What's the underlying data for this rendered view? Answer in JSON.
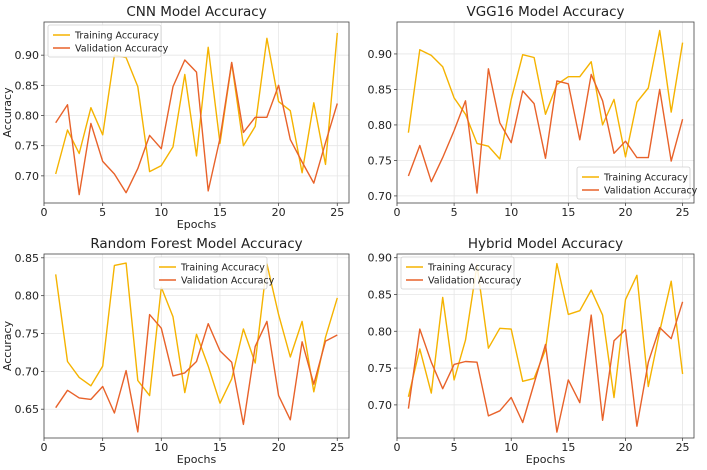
{
  "colors": {
    "training": "#f5b300",
    "validation": "#e8622a",
    "grid": "#e6e6e6",
    "axis": "#444444"
  },
  "chart_data": [
    {
      "type": "line",
      "title": "CNN Model Accuracy",
      "xlabel": "Epochs",
      "ylabel": "Accuracy",
      "xlim": [
        0,
        26
      ],
      "ylim": [
        0.655,
        0.955
      ],
      "xticks": [
        0,
        5,
        10,
        15,
        20,
        25
      ],
      "yticks": [
        0.7,
        0.75,
        0.8,
        0.85,
        0.9
      ],
      "grid": true,
      "legend": "top-left",
      "x": [
        1,
        2,
        3,
        4,
        5,
        6,
        7,
        8,
        9,
        10,
        11,
        12,
        13,
        14,
        15,
        16,
        17,
        18,
        19,
        20,
        21,
        22,
        23,
        24,
        25
      ],
      "series": [
        {
          "name": "Training Accuracy",
          "values": [
            0.703,
            0.776,
            0.737,
            0.813,
            0.768,
            0.9,
            0.896,
            0.848,
            0.707,
            0.717,
            0.748,
            0.868,
            0.733,
            0.913,
            0.754,
            0.887,
            0.75,
            0.782,
            0.928,
            0.823,
            0.808,
            0.705,
            0.821,
            0.719,
            0.937
          ]
        },
        {
          "name": "Validation Accuracy",
          "values": [
            0.788,
            0.818,
            0.669,
            0.787,
            0.724,
            0.703,
            0.672,
            0.712,
            0.767,
            0.745,
            0.848,
            0.892,
            0.872,
            0.675,
            0.762,
            0.888,
            0.772,
            0.797,
            0.797,
            0.85,
            0.76,
            0.723,
            0.688,
            0.755,
            0.82
          ]
        }
      ]
    },
    {
      "type": "line",
      "title": "VGG16 Model Accuracy",
      "xlabel": "",
      "ylabel": "",
      "xlim": [
        0,
        26
      ],
      "ylim": [
        0.69,
        0.945
      ],
      "xticks": [
        0,
        5,
        10,
        15,
        20,
        25
      ],
      "yticks": [
        0.7,
        0.75,
        0.8,
        0.85,
        0.9
      ],
      "grid": true,
      "legend": "bottom-right",
      "x": [
        1,
        2,
        3,
        4,
        5,
        6,
        7,
        8,
        9,
        10,
        11,
        12,
        13,
        14,
        15,
        16,
        17,
        18,
        19,
        20,
        21,
        22,
        23,
        24,
        25
      ],
      "series": [
        {
          "name": "Training Accuracy",
          "values": [
            0.789,
            0.906,
            0.898,
            0.882,
            0.838,
            0.815,
            0.774,
            0.77,
            0.752,
            0.836,
            0.899,
            0.895,
            0.815,
            0.857,
            0.868,
            0.868,
            0.889,
            0.8,
            0.836,
            0.755,
            0.832,
            0.852,
            0.933,
            0.818,
            0.916
          ]
        },
        {
          "name": "Validation Accuracy",
          "values": [
            0.728,
            0.771,
            0.72,
            0.754,
            0.792,
            0.834,
            0.704,
            0.879,
            0.803,
            0.775,
            0.848,
            0.83,
            0.753,
            0.862,
            0.858,
            0.779,
            0.871,
            0.834,
            0.76,
            0.777,
            0.754,
            0.754,
            0.85,
            0.749,
            0.808
          ]
        }
      ]
    },
    {
      "type": "line",
      "title": "Random Forest Model Accuracy",
      "xlabel": "Epochs",
      "ylabel": "Accuracy",
      "xlim": [
        0,
        26
      ],
      "ylim": [
        0.612,
        0.855
      ],
      "xticks": [
        0,
        5,
        10,
        15,
        20,
        25
      ],
      "yticks": [
        0.65,
        0.7,
        0.75,
        0.8,
        0.85
      ],
      "grid": true,
      "legend": "top-center",
      "x": [
        1,
        2,
        3,
        4,
        5,
        6,
        7,
        8,
        9,
        10,
        11,
        12,
        13,
        14,
        15,
        16,
        17,
        18,
        19,
        20,
        21,
        22,
        23,
        24,
        25
      ],
      "series": [
        {
          "name": "Training Accuracy",
          "values": [
            0.828,
            0.713,
            0.692,
            0.681,
            0.707,
            0.84,
            0.843,
            0.688,
            0.668,
            0.811,
            0.772,
            0.672,
            0.749,
            0.707,
            0.658,
            0.69,
            0.756,
            0.711,
            0.842,
            0.775,
            0.719,
            0.766,
            0.673,
            0.745,
            0.797
          ]
        },
        {
          "name": "Validation Accuracy",
          "values": [
            0.652,
            0.675,
            0.665,
            0.663,
            0.68,
            0.645,
            0.701,
            0.62,
            0.775,
            0.757,
            0.694,
            0.698,
            0.713,
            0.763,
            0.727,
            0.712,
            0.63,
            0.733,
            0.766,
            0.668,
            0.636,
            0.739,
            0.683,
            0.74,
            0.748
          ]
        }
      ]
    },
    {
      "type": "line",
      "title": "Hybrid Model Accuracy",
      "xlabel": "Epochs",
      "ylabel": "",
      "xlim": [
        0,
        26
      ],
      "ylim": [
        0.655,
        0.905
      ],
      "xticks": [
        0,
        5,
        10,
        15,
        20,
        25
      ],
      "yticks": [
        0.7,
        0.75,
        0.8,
        0.85,
        0.9
      ],
      "grid": true,
      "legend": "top-left",
      "x": [
        1,
        2,
        3,
        4,
        5,
        6,
        7,
        8,
        9,
        10,
        11,
        12,
        13,
        14,
        15,
        16,
        17,
        18,
        19,
        20,
        21,
        22,
        23,
        24,
        25
      ],
      "series": [
        {
          "name": "Training Accuracy",
          "values": [
            0.711,
            0.776,
            0.716,
            0.846,
            0.734,
            0.788,
            0.89,
            0.777,
            0.804,
            0.803,
            0.732,
            0.736,
            0.775,
            0.892,
            0.823,
            0.828,
            0.856,
            0.822,
            0.71,
            0.843,
            0.876,
            0.725,
            0.8,
            0.868,
            0.742
          ]
        },
        {
          "name": "Validation Accuracy",
          "values": [
            0.695,
            0.803,
            0.758,
            0.722,
            0.755,
            0.759,
            0.758,
            0.685,
            0.692,
            0.71,
            0.676,
            0.729,
            0.782,
            0.663,
            0.734,
            0.703,
            0.822,
            0.679,
            0.787,
            0.802,
            0.671,
            0.758,
            0.805,
            0.79,
            0.84
          ]
        }
      ]
    }
  ]
}
